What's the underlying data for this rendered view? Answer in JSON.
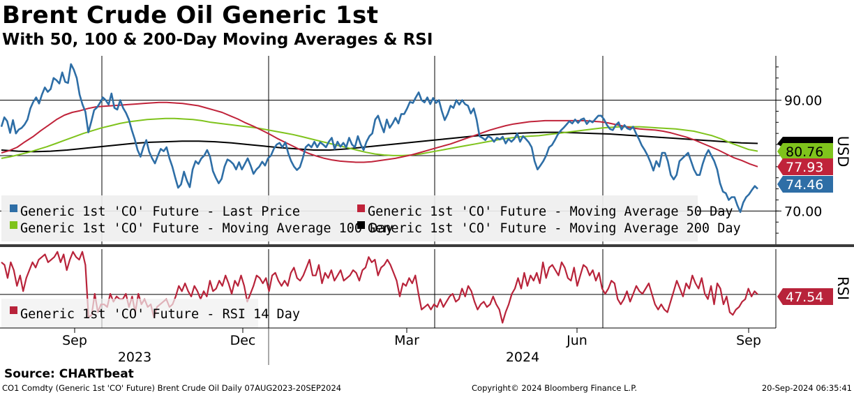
{
  "header": {
    "title": "Brent Crude Oil Generic 1st",
    "subtitle": "With 50, 100 & 200-Day Moving Averages & RSI"
  },
  "footer": {
    "source": "Source: CHARTbeat",
    "description": "CO1 Comdty (Generic 1st 'CO' Future) Brent Crude Oil  Daily 07AUG2023-20SEP2024",
    "copyright": "Copyright© 2024 Bloomberg Finance L.P.",
    "timestamp": "20-Sep-2024 06:35:41"
  },
  "colors": {
    "last_price": "#2e6ea6",
    "ma50": "#c0233a",
    "ma100": "#7fc31c",
    "ma200": "#000000",
    "rsi": "#b8233a",
    "legend_bg": "#efefef",
    "grid": "#000000"
  },
  "chart_data": [
    {
      "type": "line",
      "panel": "price",
      "ylabel": "USD",
      "ylim": [
        64,
        98
      ],
      "yticks": [
        {
          "value": 90,
          "label": "90.00"
        },
        {
          "value": 70,
          "label": "70.00"
        }
      ],
      "x_axis": {
        "months": [
          "Sep",
          "Dec",
          "Mar",
          "Jun",
          "Sep"
        ],
        "years": [
          "2023",
          "2024"
        ]
      },
      "series": [
        {
          "name": "Generic 1st 'CO' Future - Last Price",
          "color_key": "last_price",
          "values": [
            85.2,
            86.9,
            86.2,
            84.1,
            86.4,
            84.0,
            84.7,
            85.0,
            85.6,
            86.5,
            88.5,
            89.7,
            90.5,
            89.4,
            91.0,
            92.3,
            91.5,
            92.0,
            94.0,
            93.6,
            93.0,
            95.0,
            93.3,
            93.1,
            96.5,
            95.5,
            94.0,
            91.0,
            89.2,
            87.9,
            84.2,
            86.1,
            88.2,
            88.7,
            89.5,
            90.5,
            90.0,
            89.2,
            91.2,
            88.6,
            88.3,
            90.0,
            88.6,
            87.7,
            86.5,
            84.6,
            83.0,
            81.0,
            79.8,
            81.5,
            82.8,
            80.7,
            79.5,
            78.6,
            80.0,
            81.2,
            80.8,
            81.5,
            79.5,
            78.0,
            76.0,
            74.2,
            74.8,
            77.1,
            75.5,
            74.3,
            77.5,
            79.0,
            78.5,
            79.5,
            80.0,
            81.0,
            79.8,
            77.2,
            76.0,
            75.0,
            75.8,
            78.0,
            79.3,
            79.0,
            78.5,
            77.5,
            78.8,
            77.5,
            78.5,
            79.5,
            78.2,
            76.7,
            77.5,
            78.0,
            78.9,
            78.2,
            79.5,
            80.0,
            81.2,
            82.0,
            82.3,
            81.5,
            82.4,
            80.4,
            79.0,
            78.0,
            77.4,
            77.9,
            79.5,
            81.5,
            82.0,
            81.5,
            82.5,
            81.5,
            82.4,
            82.0,
            81.5,
            82.5,
            83.2,
            81.2,
            82.5,
            81.6,
            82.3,
            81.5,
            83.2,
            82.0,
            81.5,
            83.5,
            82.0,
            81.0,
            82.5,
            83.5,
            84.0,
            86.5,
            87.2,
            85.6,
            84.2,
            86.5,
            85.0,
            85.8,
            86.8,
            85.8,
            87.5,
            87.5,
            88.5,
            89.7,
            89.5,
            90.5,
            91.4,
            90.0,
            89.6,
            90.5,
            89.3,
            90.4,
            89.5,
            90.0,
            88.0,
            86.4,
            87.5,
            89.0,
            88.6,
            90.0,
            89.2,
            90.0,
            89.3,
            89.0,
            87.6,
            88.5,
            86.5,
            83.5,
            83.2,
            82.8,
            83.5,
            83.2,
            82.5,
            83.2,
            82.9,
            83.4,
            82.2,
            83.0,
            82.5,
            83.0,
            84.0,
            82.5,
            83.5,
            83.0,
            82.4,
            81.5,
            79.0,
            77.5,
            78.2,
            79.0,
            80.0,
            81.5,
            81.9,
            82.8,
            83.8,
            84.5,
            85.0,
            85.6,
            86.2,
            85.8,
            86.5,
            85.9,
            86.5,
            86.7,
            85.7,
            86.3,
            86.0,
            86.6,
            87.2,
            87.2,
            86.5,
            85.5,
            84.8,
            84.6,
            85.5,
            86.0,
            84.7,
            85.5,
            84.9,
            84.7,
            85.2,
            84.0,
            83.0,
            81.8,
            81.0,
            80.0,
            78.8,
            77.3,
            79.0,
            78.0,
            80.5,
            80.5,
            79.0,
            76.5,
            75.7,
            76.5,
            79.0,
            79.5,
            80.0,
            80.5,
            79.0,
            77.5,
            76.5,
            76.5,
            78.5,
            80.0,
            81.0,
            80.0,
            79.0,
            77.5,
            75.0,
            73.5,
            73.2,
            72.0,
            72.5,
            72.5,
            71.0,
            69.8,
            71.5,
            72.5,
            73.0,
            73.8,
            74.5,
            74.0
          ]
        },
        {
          "name": "Generic 1st 'CO' Future - Moving Average 50 Day",
          "color_key": "ma50",
          "values": [
            80.5,
            80.9,
            81.5,
            82.5,
            83.4,
            84.5,
            85.5,
            86.5,
            87.3,
            87.8,
            88.1,
            88.5,
            88.8,
            88.9,
            89.0,
            89.1,
            89.2,
            89.3,
            89.4,
            89.5,
            89.6,
            89.6,
            89.5,
            89.4,
            89.2,
            89.0,
            88.6,
            88.2,
            87.8,
            87.2,
            86.6,
            85.9,
            85.3,
            84.6,
            83.9,
            83.1,
            82.4,
            81.7,
            81.0,
            80.4,
            79.9,
            79.5,
            79.2,
            79.0,
            78.9,
            78.8,
            78.8,
            78.9,
            79.1,
            79.3,
            79.5,
            79.8,
            80.1,
            80.5,
            80.9,
            81.3,
            81.7,
            82.1,
            82.6,
            83.1,
            83.6,
            84.1,
            84.6,
            85.0,
            85.4,
            85.7,
            85.9,
            86.1,
            86.2,
            86.3,
            86.3,
            86.3,
            86.3,
            86.3,
            86.3,
            86.2,
            86.1,
            85.9,
            85.6,
            85.3,
            85.0,
            84.8,
            84.7,
            84.6,
            84.4,
            84.1,
            83.7,
            83.3,
            82.8,
            82.2,
            81.6,
            81.0,
            80.3,
            79.6,
            79.1,
            78.5,
            78.0
          ]
        },
        {
          "name": "Generic 1st 'CO' Future - Moving Average 100 Day",
          "color_key": "ma100",
          "values": [
            79.5,
            79.8,
            80.2,
            80.6,
            81.1,
            81.6,
            82.2,
            82.8,
            83.4,
            84.0,
            84.5,
            85.0,
            85.4,
            85.8,
            86.1,
            86.3,
            86.5,
            86.6,
            86.7,
            86.7,
            86.6,
            86.5,
            86.3,
            86.0,
            85.8,
            85.6,
            85.4,
            85.2,
            85.0,
            84.7,
            84.4,
            84.1,
            83.8,
            83.4,
            83.0,
            82.6,
            82.2,
            81.8,
            81.4,
            81.0,
            80.6,
            80.3,
            80.1,
            80.0,
            80.0,
            80.1,
            80.3,
            80.6,
            80.9,
            81.2,
            81.5,
            81.8,
            82.1,
            82.4,
            82.7,
            83.0,
            83.2,
            83.4,
            83.5,
            83.6,
            83.8,
            84.0,
            84.2,
            84.4,
            84.6,
            84.8,
            85.0,
            85.1,
            85.2,
            85.2,
            85.2,
            85.1,
            85.0,
            84.9,
            84.8,
            84.6,
            84.4,
            84.0,
            83.6,
            83.0,
            82.3,
            81.7,
            81.1,
            80.8
          ]
        },
        {
          "name": "Generic 1st 'CO' Future - Moving Average 200 Day",
          "color_key": "ma200",
          "values": [
            81.0,
            80.8,
            80.7,
            80.8,
            81.0,
            81.3,
            81.6,
            81.9,
            82.2,
            82.4,
            82.5,
            82.6,
            82.6,
            82.5,
            82.3,
            82.0,
            81.7,
            81.4,
            81.2,
            81.0,
            81.0,
            81.2,
            81.5,
            81.8,
            82.1,
            82.4,
            82.7,
            83.0,
            83.3,
            83.6,
            83.8,
            84.0,
            84.1,
            84.2,
            84.2,
            84.1,
            84.0,
            83.9,
            83.7,
            83.5,
            83.3,
            83.1,
            82.9,
            82.7,
            82.5,
            82.3,
            82.2
          ]
        }
      ],
      "end_labels": [
        {
          "value": 80.76,
          "label": "80.76",
          "color_key": "ma100"
        },
        {
          "value": 77.93,
          "label": "77.93",
          "color_key": "ma50"
        },
        {
          "value": 74.46,
          "label": "74.46",
          "color_key": "last_price"
        }
      ],
      "legend": [
        "Generic 1st 'CO' Future - Last Price",
        "Generic 1st 'CO' Future - Moving Average 50 Day",
        "Generic 1st 'CO' Future - Moving Average 100 Day",
        "Generic 1st 'CO' Future - Moving Average 200 Day"
      ]
    },
    {
      "type": "line",
      "panel": "rsi",
      "ylabel": "RSI",
      "ylim": [
        22,
        82
      ],
      "series": [
        {
          "name": "Generic 1st 'CO' Future - RSI 14 Day",
          "color_key": "rsi",
          "values": [
            72,
            70,
            60,
            72,
            66,
            54,
            62,
            50,
            60,
            66,
            72,
            68,
            74,
            76,
            78,
            72,
            74,
            76,
            80,
            72,
            78,
            66,
            74,
            80,
            76,
            74,
            80,
            70,
            30,
            32,
            48,
            34,
            40,
            40,
            38,
            48,
            42,
            46,
            44,
            44,
            48,
            38,
            46,
            34,
            48,
            40,
            44,
            38,
            40,
            30,
            38,
            40,
            42,
            44,
            38,
            40,
            46,
            54,
            50,
            56,
            50,
            46,
            54,
            50,
            44,
            50,
            46,
            58,
            50,
            52,
            58,
            54,
            62,
            56,
            48,
            58,
            54,
            62,
            54,
            42,
            48,
            54,
            62,
            60,
            56,
            60,
            50,
            62,
            64,
            58,
            54,
            58,
            54,
            64,
            68,
            60,
            58,
            62,
            68,
            74,
            62,
            62,
            70,
            56,
            64,
            60,
            66,
            58,
            62,
            66,
            58,
            60,
            62,
            66,
            64,
            58,
            66,
            68,
            76,
            72,
            74,
            62,
            68,
            70,
            74,
            70,
            64,
            58,
            46,
            56,
            54,
            60,
            56,
            62,
            48,
            36,
            38,
            40,
            36,
            40,
            38,
            44,
            38,
            42,
            46,
            48,
            42,
            44,
            52,
            46,
            54,
            50,
            42,
            36,
            40,
            42,
            38,
            40,
            46,
            40,
            36,
            26,
            34,
            40,
            48,
            52,
            60,
            52,
            64,
            54,
            62,
            58,
            64,
            56,
            72,
            60,
            68,
            70,
            66,
            62,
            72,
            68,
            60,
            58,
            68,
            54,
            62,
            70,
            68,
            62,
            66,
            58,
            64,
            52,
            48,
            52,
            58,
            56,
            44,
            40,
            44,
            50,
            42,
            48,
            54,
            50,
            48,
            52,
            56,
            48,
            40,
            36,
            40,
            36,
            34,
            42,
            50,
            58,
            52,
            46,
            56,
            52,
            62,
            56,
            52,
            60,
            48,
            44,
            54,
            40,
            56,
            52,
            40,
            46,
            34,
            32,
            36,
            38,
            42,
            44,
            52,
            46,
            50,
            47.54
          ]
        }
      ],
      "end_labels": [
        {
          "value": 47.54,
          "label": "47.54",
          "color_key": "rsi"
        }
      ],
      "legend": [
        "Generic 1st 'CO' Future - RSI 14 Day"
      ]
    }
  ]
}
